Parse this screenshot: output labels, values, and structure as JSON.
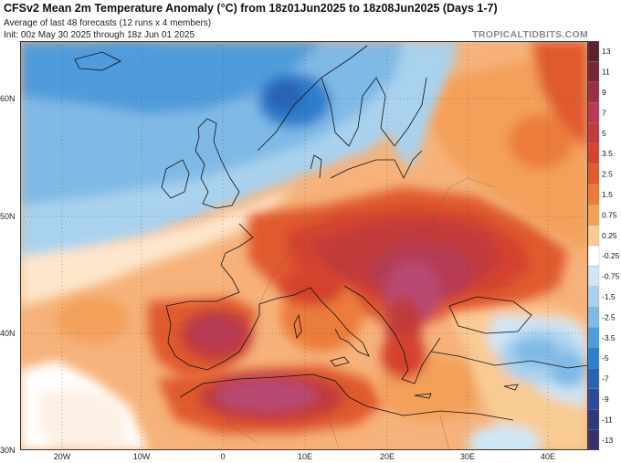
{
  "header": {
    "title": "CFSv2 Mean 2m Temperature Anomaly (°C) from 18z01Jun2025 to 18z08Jun2025 (Days 1-7)",
    "subtitle1": "Average of last 48 forecasts (12 runs x 4 members)",
    "subtitle2": "Init: 00z May 30 2025 through 18z Jun 01 2025",
    "brand": "TROPICALTIDBITS.COM"
  },
  "axes": {
    "lat_labels": [
      "60N",
      "50N",
      "40N",
      "30N"
    ],
    "lon_labels": [
      "20W",
      "10W",
      "0",
      "10E",
      "20E",
      "30E",
      "40E"
    ]
  },
  "colorbar": {
    "labels": [
      "13",
      "11",
      "9",
      "7",
      "5",
      "3.5",
      "2.5",
      "1.5",
      "0.75",
      "0.25",
      "-0.25",
      "-0.75",
      "-1.5",
      "-2.5",
      "-3.5",
      "-5",
      "-7",
      "-9",
      "-11",
      "-13"
    ],
    "colors": [
      "#5c1f2e",
      "#7a2438",
      "#9b2f48",
      "#b73a52",
      "#c23a3a",
      "#d4432f",
      "#e05a2e",
      "#ec7b3a",
      "#f3a05a",
      "#f9cb94",
      "#ffffff",
      "#cfe6f5",
      "#a9d2ee",
      "#7fb9e6",
      "#4f9bdb",
      "#2f7dcc",
      "#2b62b5",
      "#2a4b98",
      "#2b3a7a",
      "#3a2f66"
    ]
  },
  "legend_colors": {
    "warm_extreme": "#c4557c",
    "warm": "#d63b2b",
    "mild_warm": "#f2a15e",
    "neutral": "#ffffff",
    "cool": "#8cc4ea",
    "cold": "#3478c8"
  }
}
